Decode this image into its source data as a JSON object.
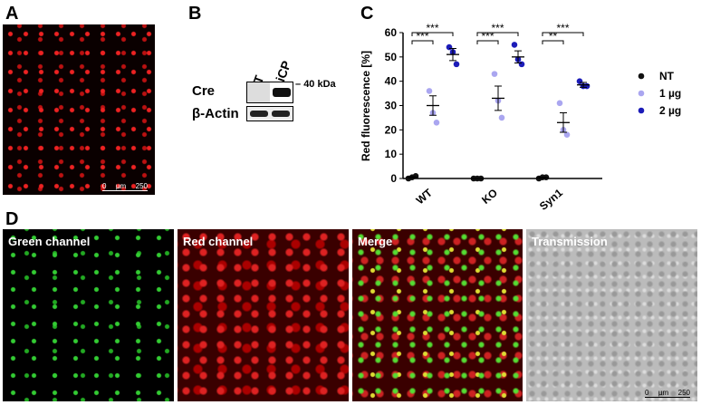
{
  "panel_labels": [
    "A",
    "B",
    "C",
    "D"
  ],
  "panel_a": {
    "scale_bar": {
      "start": "0",
      "unit": "µm",
      "end": "250"
    }
  },
  "panel_b": {
    "lanes": [
      "NT",
      "miCP"
    ],
    "rows": [
      "Cre",
      "β-Actin"
    ],
    "marker": "40 kDa"
  },
  "chart_data": {
    "type": "scatter",
    "ylabel": "Red fluorescence [%]",
    "categories": [
      "WT",
      "KO",
      "Syn1"
    ],
    "series": [
      {
        "name": "NT",
        "color": "#111111",
        "values": [
          [
            0,
            0.5,
            1
          ],
          [
            0,
            0,
            0
          ],
          [
            0,
            0.5,
            0.5
          ]
        ],
        "mean": [
          0.5,
          0,
          0.3
        ],
        "sem": [
          0.3,
          0,
          0.2
        ]
      },
      {
        "name": "1 µg",
        "color": "#aaa6f0",
        "values": [
          [
            36,
            27,
            23
          ],
          [
            43,
            32,
            25
          ],
          [
            31,
            20,
            18
          ]
        ],
        "mean": [
          30,
          33,
          23
        ],
        "sem": [
          4,
          5,
          4
        ]
      },
      {
        "name": "2 µg",
        "color": "#1c1cb8",
        "values": [
          [
            54,
            52,
            47
          ],
          [
            55,
            49,
            47
          ],
          [
            40,
            38,
            38
          ]
        ],
        "mean": [
          51,
          50,
          38.5
        ],
        "sem": [
          2.5,
          2.5,
          1
        ]
      }
    ],
    "ylim": [
      0,
      60
    ],
    "yticks": [
      0,
      10,
      20,
      30,
      40,
      50,
      60
    ],
    "significance": [
      [
        "***",
        "***"
      ],
      [
        "***",
        "***"
      ],
      [
        "**",
        "***"
      ]
    ]
  },
  "panel_d": {
    "channels": [
      "Green channel",
      "Red channel",
      "Merge",
      "Transmission"
    ],
    "scale_bar": {
      "start": "0",
      "unit": "µm",
      "end": "250"
    }
  }
}
